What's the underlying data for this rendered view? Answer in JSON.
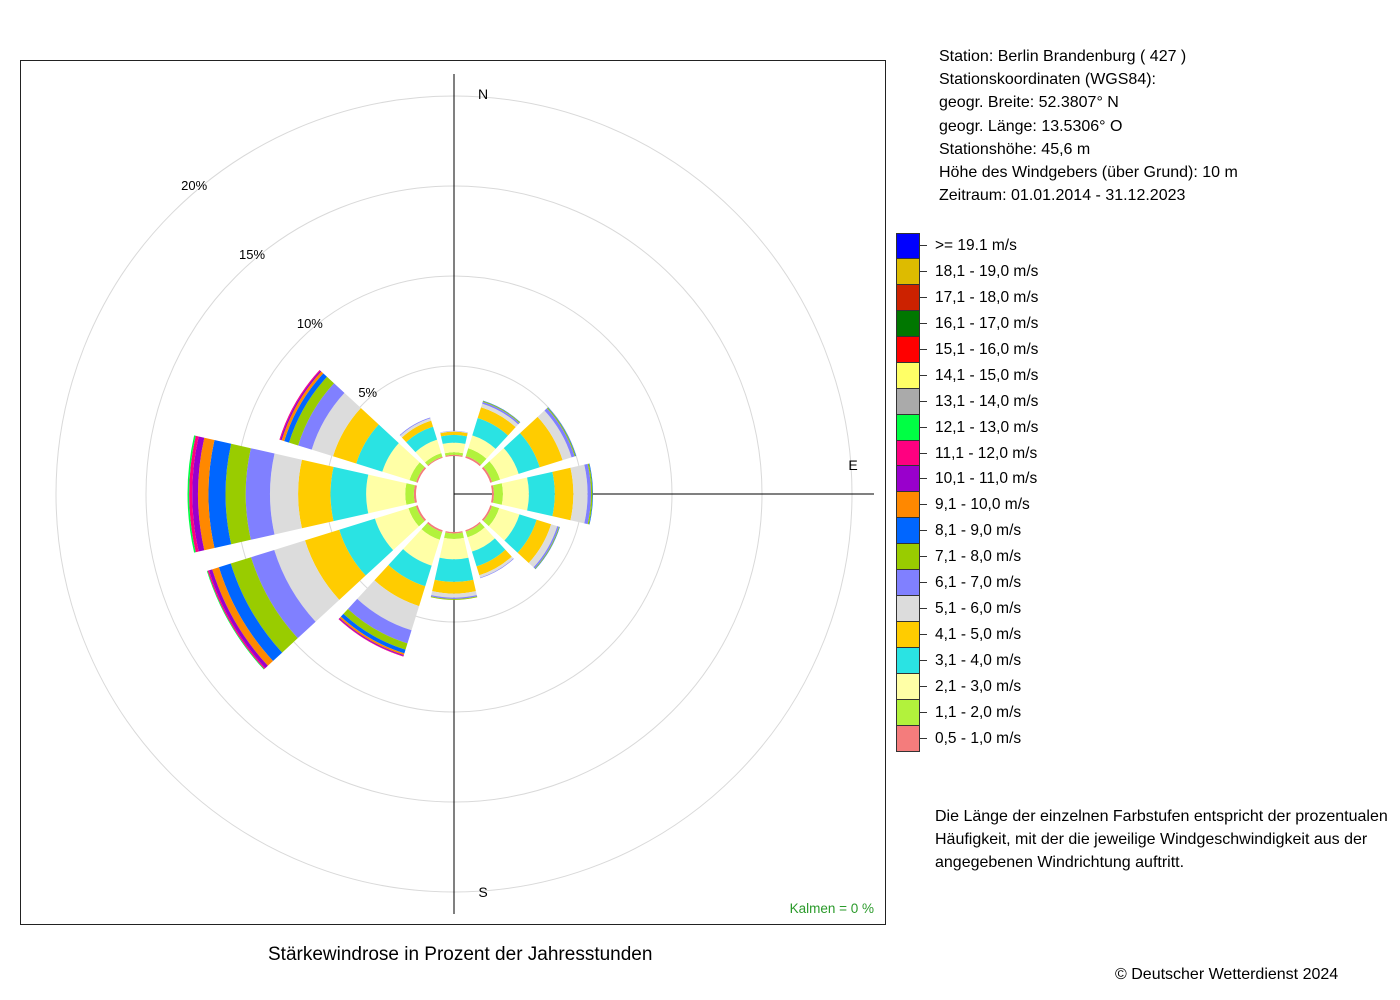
{
  "station": {
    "line1": "Station:  Berlin Brandenburg  ( 427 )",
    "line2": "Stationskoordinaten (WGS84):",
    "line3": "geogr. Breite: 52.3807° N",
    "line4": "geogr. Länge: 13.5306° O",
    "line5": "Stationshöhe: 45,6 m",
    "line6": "Höhe des Windgebers (über Grund): 10 m",
    "line7": "Zeitraum: 01.01.2014 - 31.12.2023"
  },
  "caption": "Stärkewindrose in Prozent der Jahresstunden",
  "calms": "Kalmen  =  0 %",
  "explanation": {
    "line1": "Die Länge der einzelnen Farbstufen entspricht der prozentualen",
    "line2": "Häufigkeit, mit der die jeweilige Windgeschwindigkeit aus der",
    "line3": "angegebenen Windrichtung auftritt."
  },
  "copyright": "© Deutscher Wetterdienst  2024",
  "chart_data": {
    "type": "windrose",
    "directions_deg": [
      0,
      30,
      60,
      90,
      120,
      150,
      180,
      210,
      240,
      270,
      300,
      330
    ],
    "compass_labels": [
      "N",
      "E",
      "S"
    ],
    "radial_ticks": [
      {
        "value": 5,
        "label": "5%"
      },
      {
        "value": 10,
        "label": "10%"
      },
      {
        "value": 15,
        "label": "15%"
      },
      {
        "value": 20,
        "label": "20%"
      }
    ],
    "classes": [
      {
        "label": "0,5 - 1,0 m/s",
        "color": "#f47c7c"
      },
      {
        "label": "1,1 - 2,0 m/s",
        "color": "#b2f23c"
      },
      {
        "label": "2,1 - 3,0 m/s",
        "color": "#ffffa6"
      },
      {
        "label": "3,1 - 4,0 m/s",
        "color": "#2ae3e3"
      },
      {
        "label": "4,1 - 5,0 m/s",
        "color": "#ffcc00"
      },
      {
        "label": "5,1 - 6,0 m/s",
        "color": "#dcdcdc"
      },
      {
        "label": "6,1 - 7,0 m/s",
        "color": "#8080ff"
      },
      {
        "label": "7,1 - 8,0 m/s",
        "color": "#99cc00"
      },
      {
        "label": "8,1 - 9,0 m/s",
        "color": "#0066ff"
      },
      {
        "label": "9,1 - 10,0 m/s",
        "color": "#ff8800"
      },
      {
        "label": "10,1 - 11,0 m/s",
        "color": "#9900cc"
      },
      {
        "label": "11,1 - 12,0 m/s",
        "color": "#ff0080"
      },
      {
        "label": "12,1 - 13,0 m/s",
        "color": "#00ff44"
      },
      {
        "label": "13,1 - 14,0 m/s",
        "color": "#aaaaaa"
      },
      {
        "label": "14,1 - 15,0 m/s",
        "color": "#ffff66"
      },
      {
        "label": "15,1 - 16,0 m/s",
        "color": "#ff0000"
      },
      {
        "label": "16,1 - 17,0 m/s",
        "color": "#007700"
      },
      {
        "label": "17,1 - 18,0 m/s",
        "color": "#cc2200"
      },
      {
        "label": "18,1 - 19,0 m/s",
        "color": "#ddbb00"
      },
      {
        "label": ">= 19.1 m/s",
        "color": "#0000ff"
      }
    ],
    "values_percent": [
      [
        0.07,
        0.14,
        0.53,
        0.43,
        0.18,
        0.04,
        0.01,
        0.0,
        0.0
      ],
      [
        0.1,
        0.45,
        0.75,
        1.01,
        0.63,
        0.21,
        0.1,
        0.05,
        0.02
      ],
      [
        0.11,
        0.46,
        1.08,
        1.23,
        1.33,
        0.52,
        0.18,
        0.06,
        0.03
      ],
      [
        0.11,
        0.5,
        1.44,
        1.44,
        1.03,
        0.79,
        0.19,
        0.08,
        0.03
      ],
      [
        0.1,
        0.42,
        1.18,
        1.0,
        0.84,
        0.36,
        0.09,
        0.04,
        0.02
      ],
      [
        0.08,
        0.33,
        0.83,
        0.86,
        0.52,
        0.14,
        0.03,
        0.0,
        0.0
      ],
      [
        0.08,
        0.31,
        1.13,
        1.25,
        0.65,
        0.23,
        0.07,
        0.05,
        0.0
      ],
      [
        0.1,
        0.45,
        1.51,
        1.2,
        1.15,
        1.41,
        0.76,
        0.37,
        0.21,
        0.1,
        0.06,
        0.03
      ],
      [
        0.11,
        0.43,
        1.95,
        2.08,
        1.99,
        1.79,
        1.35,
        1.18,
        0.69,
        0.39,
        0.19,
        0.08,
        0.04
      ],
      [
        0.12,
        0.48,
        2.17,
        1.98,
        1.8,
        1.56,
        1.35,
        1.12,
        0.95,
        0.58,
        0.32,
        0.17,
        0.09
      ],
      [
        0.1,
        0.38,
        1.58,
        1.52,
        1.35,
        1.24,
        0.79,
        0.53,
        0.28,
        0.15,
        0.08,
        0.05
      ],
      [
        0.06,
        0.21,
        0.78,
        0.76,
        0.35,
        0.14,
        0.04,
        0.0,
        0.0
      ]
    ]
  }
}
